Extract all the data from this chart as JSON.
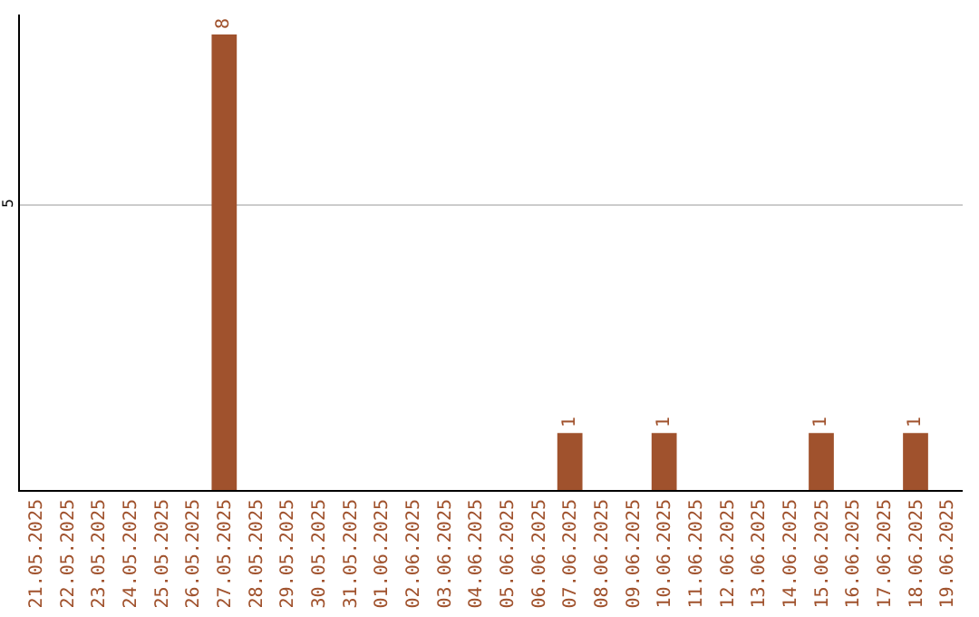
{
  "chart_data": {
    "type": "bar",
    "categories": [
      "21.05.2025",
      "22.05.2025",
      "23.05.2025",
      "24.05.2025",
      "25.05.2025",
      "26.05.2025",
      "27.05.2025",
      "28.05.2025",
      "29.05.2025",
      "30.05.2025",
      "31.05.2025",
      "01.06.2025",
      "02.06.2025",
      "03.06.2025",
      "04.06.2025",
      "05.06.2025",
      "06.06.2025",
      "07.06.2025",
      "08.06.2025",
      "09.06.2025",
      "10.06.2025",
      "11.06.2025",
      "12.06.2025",
      "13.06.2025",
      "14.06.2025",
      "15.06.2025",
      "16.06.2025",
      "17.06.2025",
      "18.06.2025",
      "19.06.2025"
    ],
    "values": [
      null,
      null,
      null,
      null,
      null,
      null,
      8,
      null,
      null,
      null,
      null,
      null,
      null,
      null,
      null,
      null,
      null,
      1,
      null,
      null,
      1,
      null,
      null,
      null,
      null,
      1,
      null,
      null,
      1,
      null
    ],
    "color": "#a0522d",
    "ylim": [
      0,
      8.35
    ],
    "yticks": [
      5
    ],
    "grid": "y",
    "data_labels": true
  }
}
